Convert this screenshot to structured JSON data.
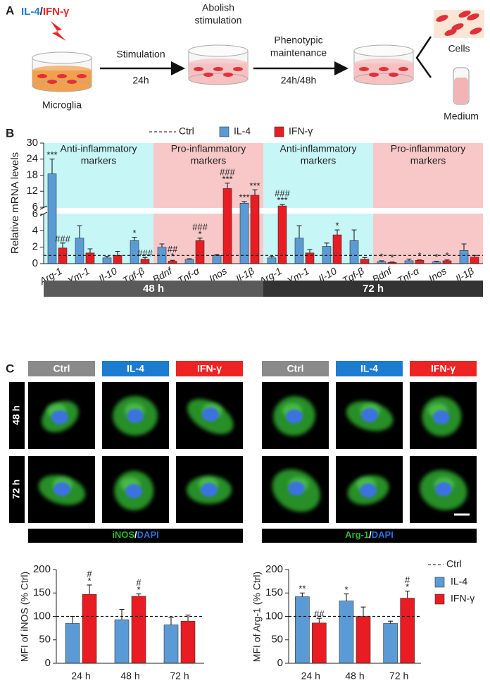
{
  "schematic": {
    "panel": "A",
    "stimuli": [
      "IL-4",
      "/",
      "IFN-γ"
    ],
    "cells_label": "Microglia",
    "step1": [
      "Stimulation",
      "24h"
    ],
    "step2": [
      "Abolish",
      "stimulation"
    ],
    "step3": [
      "Phenotypic",
      "maintenance",
      "24h/48h"
    ],
    "outputs": [
      "Cells",
      "Medium"
    ]
  },
  "micrographs": {
    "panel": "C",
    "columns": [
      "Ctrl",
      "IL-4",
      "IFN-γ"
    ],
    "column_colors": [
      "#8a8a8a",
      "#1c7ccf",
      "#ee2424"
    ],
    "rows": [
      "48 h",
      "72 h"
    ],
    "captions": [
      [
        "iNOS",
        "/",
        "DAPI"
      ],
      [
        "Arg-1",
        "/",
        "DAPI"
      ]
    ]
  },
  "chart_data": [
    {
      "type": "bar",
      "panel": "B",
      "ylabel": "Relative mRNA levels",
      "categories": [
        "Arg-1",
        "Ym-1",
        "Il-10",
        "Tgf-β",
        "Bdnf",
        "Tnf-α",
        "Inos",
        "Il-1β",
        "Arg-1",
        "Ym-1",
        "Il-10",
        "Tgf-β",
        "Bdnf",
        "Tnf-α",
        "Inos",
        "Il-1β"
      ],
      "groups": [
        "48 h",
        "72 h"
      ],
      "regions": [
        {
          "label": [
            "Anti-inflammatory",
            "markers"
          ],
          "color": "#c6f6f6"
        },
        {
          "label": [
            "Pro-inflammatory",
            "markers"
          ],
          "color": "#f8c8c8"
        },
        {
          "label": [
            "Anti-inflammatory",
            "markers"
          ],
          "color": "#c6f6f6"
        },
        {
          "label": [
            "Pro-inflammatory",
            "markers"
          ],
          "color": "#f8c8c8"
        }
      ],
      "reference": {
        "name": "Ctrl",
        "value": 1
      },
      "series": [
        {
          "name": "IL-4",
          "color": "#5b9bd5",
          "values": [
            18.5,
            3.1,
            0.7,
            2.8,
            2.0,
            0.5,
            1.0,
            7.5,
            0.7,
            3.1,
            2.1,
            2.8,
            0.25,
            0.35,
            0.2,
            1.6
          ],
          "errors": [
            5.5,
            1.5,
            0.2,
            0.4,
            0.4,
            0.1,
            0.1,
            0.6,
            0.2,
            1.5,
            0.4,
            1.3,
            0.1,
            0.2,
            0.1,
            0.8
          ],
          "sig": [
            [
              "***"
            ],
            null,
            null,
            [
              "*"
            ],
            null,
            null,
            null,
            [
              "***"
            ],
            null,
            null,
            null,
            null,
            [
              "*"
            ],
            null,
            [
              "*"
            ],
            null
          ]
        },
        {
          "name": "IFN-γ",
          "color": "#e81c22",
          "values": [
            1.9,
            1.3,
            1.0,
            0.55,
            0.3,
            2.8,
            13,
            10.5,
            6.5,
            1.3,
            3.5,
            0.55,
            0.15,
            0.4,
            0.35,
            0.8
          ],
          "errors": [
            0.6,
            0.5,
            0.5,
            0.2,
            0.1,
            0.3,
            2.0,
            2.0,
            0.5,
            0.4,
            0.6,
            0.2,
            0.05,
            0.05,
            0.1,
            0.2
          ],
          "sig": [
            [
              "###"
            ],
            null,
            null,
            [
              "###"
            ],
            [
              "##",
              "*"
            ],
            [
              "###",
              "*"
            ],
            [
              "###",
              "***"
            ],
            [
              "***"
            ],
            [
              "###",
              "***"
            ],
            null,
            [
              "*"
            ],
            null,
            [
              "*"
            ],
            [
              "*"
            ],
            [
              "*"
            ],
            null
          ]
        }
      ],
      "ylim_lower": [
        0,
        6
      ],
      "yticks_lower": [
        0,
        2,
        4,
        6
      ],
      "ylim_upper": [
        6,
        30
      ],
      "yticks_upper": [
        6,
        12,
        18,
        24,
        30
      ],
      "legend": "top"
    },
    {
      "type": "bar",
      "ylabel": "MFI of iNOS (% Ctrl)",
      "categories": [
        "24 h",
        "48 h",
        "72 h"
      ],
      "reference": {
        "name": "Ctrl",
        "value": 100
      },
      "series": [
        {
          "name": "IL-4",
          "color": "#5b9bd5",
          "values": [
            85,
            93,
            82
          ],
          "errors": [
            15,
            22,
            15
          ],
          "sig": [
            null,
            null,
            null
          ]
        },
        {
          "name": "IFN-γ",
          "color": "#e81c22",
          "values": [
            147,
            143,
            90
          ],
          "errors": [
            20,
            5,
            13
          ],
          "sig": [
            [
              "#",
              "*"
            ],
            [
              "#",
              "*"
            ],
            null
          ]
        }
      ],
      "ylim": [
        0,
        200
      ],
      "yticks": [
        0,
        50,
        100,
        150,
        200
      ]
    },
    {
      "type": "bar",
      "ylabel": "MFI of Arg-1 (% Ctrl)",
      "categories": [
        "24 h",
        "48 h",
        "72 h"
      ],
      "reference": {
        "name": "Ctrl",
        "value": 100
      },
      "series": [
        {
          "name": "IL-4",
          "color": "#5b9bd5",
          "values": [
            142,
            133,
            85
          ],
          "errors": [
            8,
            15,
            5
          ],
          "sig": [
            [
              "**"
            ],
            [
              "*"
            ],
            null
          ]
        },
        {
          "name": "IFN-γ",
          "color": "#e81c22",
          "values": [
            86,
            100,
            139
          ],
          "errors": [
            10,
            20,
            15
          ],
          "sig": [
            [
              "##"
            ],
            null,
            [
              "#",
              "*"
            ]
          ]
        }
      ],
      "ylim": [
        0,
        200
      ],
      "yticks": [
        0,
        50,
        100,
        150,
        200
      ],
      "legend": "right"
    }
  ]
}
